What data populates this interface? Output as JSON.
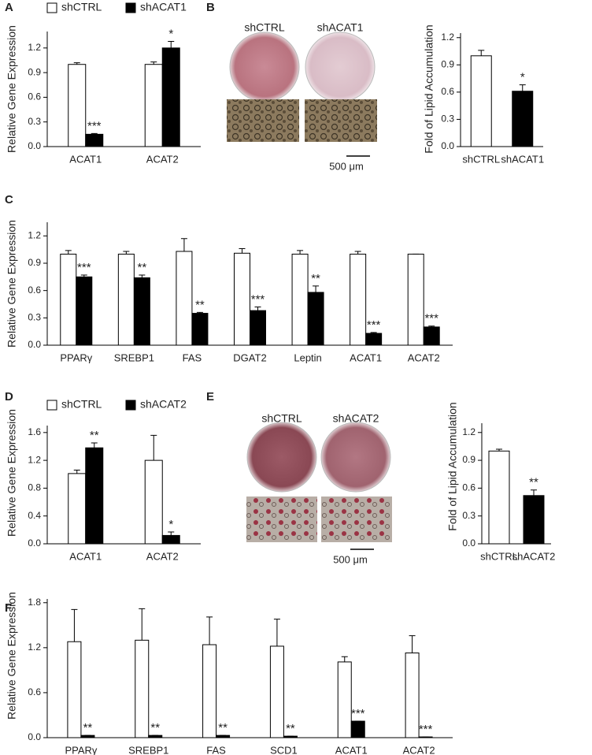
{
  "chart_data": [
    {
      "type": "bar",
      "panel": "A",
      "ylabel": "Relative Gene Expression",
      "legend": true,
      "categories": [
        "ACAT1",
        "ACAT2"
      ],
      "series": [
        {
          "name": "shCTRL",
          "color": "#ffffff",
          "values": [
            1.0,
            1.0
          ],
          "errors": [
            0.02,
            0.03
          ],
          "significance": [
            null,
            null
          ]
        },
        {
          "name": "shACAT1",
          "color": "#000000",
          "values": [
            0.15,
            1.2
          ],
          "errors": [
            0.01,
            0.08
          ],
          "significance": [
            "***",
            "*"
          ]
        }
      ],
      "ylim": [
        0,
        1.4
      ],
      "yticks": [
        {
          "value": 0,
          "label": "0.0"
        },
        0.3,
        0.6,
        0.9,
        1.2
      ]
    },
    {
      "type": "bar",
      "panel": "B",
      "ylabel": "Fold of Lipid Accumulation",
      "images": {
        "labels": [
          "shCTRL",
          "shACAT1"
        ],
        "scale_bar": "500 μm"
      },
      "categories": [
        "shCTRL",
        "shACAT1"
      ],
      "values": [
        1.0,
        0.61
      ],
      "errors": [
        0.06,
        0.07
      ],
      "significance": [
        null,
        "*"
      ],
      "colors": [
        "#ffffff",
        "#000000"
      ],
      "ylim": [
        0,
        1.25
      ],
      "yticks": [
        {
          "value": 0,
          "label": "0.0"
        },
        0.3,
        0.6,
        0.9,
        1.2
      ]
    },
    {
      "type": "bar",
      "panel": "C",
      "ylabel": "Relative Gene Expression",
      "categories": [
        "PPARγ",
        "SREBP1",
        "FAS",
        "DGAT2",
        "Leptin",
        "ACAT1",
        "ACAT2"
      ],
      "series": [
        {
          "color": "#ffffff",
          "values": [
            1.0,
            1.0,
            1.03,
            1.01,
            1.0,
            1.0,
            1.0
          ],
          "errors": [
            0.04,
            0.03,
            0.14,
            0.05,
            0.04,
            0.03,
            0
          ],
          "significance": [
            null,
            null,
            null,
            null,
            null,
            null,
            null
          ]
        },
        {
          "color": "#000000",
          "values": [
            0.75,
            0.74,
            0.35,
            0.38,
            0.58,
            0.13,
            0.2
          ],
          "errors": [
            0.02,
            0.03,
            0.01,
            0.04,
            0.07,
            0.01,
            0.01
          ],
          "significance": [
            "***",
            "**",
            "**",
            "***",
            "**",
            "***",
            "***"
          ]
        }
      ],
      "ylim": [
        0,
        1.35
      ],
      "yticks": [
        {
          "value": 0,
          "label": "0.0"
        },
        0.3,
        0.6,
        0.9,
        1.2
      ]
    },
    {
      "type": "bar",
      "panel": "D",
      "ylabel": "Relative Gene Expression",
      "legend": true,
      "categories": [
        "ACAT1",
        "ACAT2"
      ],
      "series": [
        {
          "name": "shCTRL",
          "color": "#ffffff",
          "values": [
            1.01,
            1.2
          ],
          "errors": [
            0.05,
            0.36
          ],
          "significance": [
            null,
            null
          ]
        },
        {
          "name": "shACAT2",
          "color": "#000000",
          "values": [
            1.38,
            0.12
          ],
          "errors": [
            0.07,
            0.05
          ],
          "significance": [
            "**",
            "*"
          ]
        }
      ],
      "ylim": [
        0,
        1.7
      ],
      "yticks": [
        {
          "value": 0,
          "label": "0.0"
        },
        0.4,
        0.8,
        1.2,
        1.6
      ]
    },
    {
      "type": "bar",
      "panel": "E",
      "ylabel": "Fold of Lipid Accumulation",
      "images": {
        "labels": [
          "shCTRL",
          "shACAT2"
        ],
        "scale_bar": "500 μm"
      },
      "categories": [
        "shCTRL",
        "shACAT2"
      ],
      "values": [
        1.0,
        0.52
      ],
      "errors": [
        0.02,
        0.06
      ],
      "significance": [
        null,
        "**"
      ],
      "colors": [
        "#ffffff",
        "#000000"
      ],
      "ylim": [
        0,
        1.3
      ],
      "yticks": [
        {
          "value": 0,
          "label": "0.0"
        },
        0.3,
        0.6,
        0.9,
        1.2
      ]
    },
    {
      "type": "bar",
      "panel": "F",
      "ylabel": "Relative Gene Expression",
      "categories": [
        "PPARγ",
        "SREBP1",
        "FAS",
        "SCD1",
        "ACAT1",
        "ACAT2"
      ],
      "series": [
        {
          "color": "#ffffff",
          "values": [
            1.28,
            1.3,
            1.24,
            1.22,
            1.01,
            1.13
          ],
          "errors": [
            0.43,
            0.42,
            0.37,
            0.36,
            0.07,
            0.23
          ],
          "significance": [
            null,
            null,
            null,
            null,
            null,
            null
          ]
        },
        {
          "color": "#000000",
          "values": [
            0.03,
            0.03,
            0.03,
            0.02,
            0.22,
            0.01
          ],
          "errors": [
            0,
            0,
            0,
            0,
            0,
            0
          ],
          "significance": [
            "**",
            "**",
            "**",
            "**",
            "***",
            "***"
          ]
        }
      ],
      "ylim": [
        0,
        1.85
      ],
      "yticks": [
        {
          "value": 0,
          "label": "0.0"
        },
        0.6,
        1.2,
        1.8
      ]
    }
  ]
}
